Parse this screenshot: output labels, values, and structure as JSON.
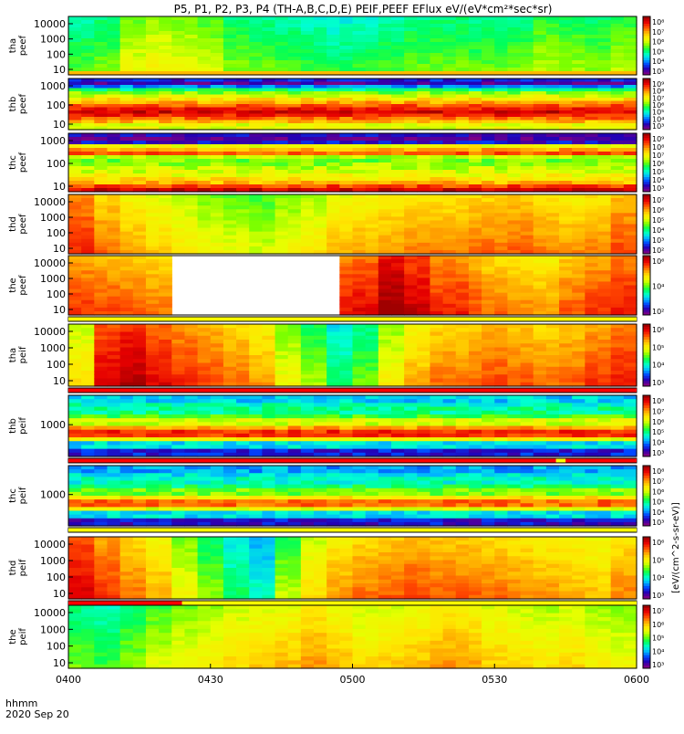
{
  "title": "P5, P1, P2, P3, P4 (TH-A,B,C,D,E) PEIF,PEEF EFlux eV/(eV*cm²*sec*sr)",
  "time_axis": {
    "row_label": "hhmm",
    "date": "2020 Sep 20",
    "ticks": [
      "0400",
      "0430",
      "0500",
      "0530",
      "0600"
    ]
  },
  "colorbar_unit": "[eV/(cm^2-s-sr-eV)]",
  "colormap": [
    "#7a0087",
    "#2500b4",
    "#0046ff",
    "#00b4ff",
    "#00ffd2",
    "#00ff5a",
    "#78ff00",
    "#e6ff00",
    "#ffe600",
    "#ffa000",
    "#ff4600",
    "#e60000",
    "#a00000"
  ],
  "chart_data": [
    {
      "type": "heatmap",
      "probe": "tha",
      "product": "peef",
      "ylabel": [
        "tha",
        "peef"
      ],
      "yticks": [
        "10000",
        "1000",
        "100",
        "10"
      ],
      "cbar_ticks": [
        "10⁸",
        "10⁷",
        "10⁶",
        "10⁵",
        "10⁴",
        "10³"
      ],
      "xlim": [
        "0400",
        "0600"
      ],
      "pattern": "uniform",
      "level_by_column": [
        0.42,
        0.45,
        0.55,
        0.58,
        0.56,
        0.52,
        0.46,
        0.44,
        0.42,
        0.4,
        0.38,
        0.4,
        0.42,
        0.44,
        0.45,
        0.43,
        0.44,
        0.45,
        0.5,
        0.48,
        0.46,
        0.5
      ],
      "bottom_band_level": 0.72
    },
    {
      "type": "heatmap",
      "probe": "thb",
      "product": "peef",
      "ylabel": [
        "thb",
        "peef"
      ],
      "yticks": [
        "1000",
        "100",
        "10"
      ],
      "cbar_ticks": [
        "10⁹",
        "10⁸",
        "10⁷",
        "10⁶",
        "10⁵",
        "10⁴",
        "10³"
      ],
      "xlim": [
        "0400",
        "0600"
      ],
      "pattern": "horizontal_bands",
      "band_levels_top_to_bottom": [
        0.12,
        0.05,
        0.22,
        0.4,
        0.5,
        0.58,
        0.66,
        0.74,
        0.82,
        0.9,
        0.94,
        0.88,
        0.8,
        0.72,
        0.6
      ]
    },
    {
      "type": "heatmap",
      "probe": "thc",
      "product": "peef",
      "ylabel": [
        "thc",
        "peef"
      ],
      "yticks": [
        "1000",
        "100",
        "10"
      ],
      "cbar_ticks": [
        "10⁹",
        "10⁸",
        "10⁷",
        "10⁶",
        "10⁵",
        "10⁴",
        "10³"
      ],
      "xlim": [
        "0400",
        "0600"
      ],
      "pattern": "horizontal_bands",
      "band_levels_top_to_bottom": [
        0.08,
        0.03,
        0.1,
        0.62,
        0.74,
        0.82,
        0.55,
        0.5,
        0.52,
        0.55,
        0.58,
        0.62,
        0.66,
        0.72,
        0.84,
        0.94
      ]
    },
    {
      "type": "heatmap",
      "probe": "thd",
      "product": "peef",
      "ylabel": [
        "thd",
        "peef"
      ],
      "yticks": [
        "10000",
        "1000",
        "100",
        "10"
      ],
      "cbar_ticks": [
        "10⁷",
        "10⁶",
        "10⁵",
        "10⁴",
        "10³",
        "10²"
      ],
      "xlim": [
        "0400",
        "0600"
      ],
      "pattern": "columns",
      "level_by_column": [
        0.82,
        0.74,
        0.68,
        0.64,
        0.6,
        0.56,
        0.54,
        0.52,
        0.56,
        0.6,
        0.66,
        0.68,
        0.7,
        0.72,
        0.72,
        0.74,
        0.74,
        0.76,
        0.72,
        0.7,
        0.72,
        0.78
      ]
    },
    {
      "type": "heatmap",
      "probe": "the",
      "product": "peef",
      "ylabel": [
        "the",
        "peef"
      ],
      "yticks": [
        "10000",
        "1000",
        "100",
        "10"
      ],
      "cbar_ticks": [
        "10⁶",
        "10⁴",
        "10²"
      ],
      "xlim": [
        "0400",
        "0600"
      ],
      "pattern": "columns_with_gap",
      "gap": [
        "0434",
        "0457"
      ],
      "level_by_column": [
        0.8,
        0.78,
        0.76,
        0.74,
        null,
        null,
        null,
        0.92,
        0.96,
        0.88,
        0.84,
        0.86,
        0.96,
        0.9,
        0.82,
        0.78,
        0.74,
        0.72,
        0.7,
        0.76,
        0.8,
        0.84
      ]
    },
    {
      "type": "heatmap",
      "probe": "tha",
      "product": "peif",
      "ylabel": [
        "tha",
        "peif"
      ],
      "yticks": [
        "10000",
        "1000",
        "100",
        "10"
      ],
      "cbar_ticks": [
        "10⁶",
        "10⁵",
        "10⁴",
        "10³"
      ],
      "xlim": [
        "0400",
        "0600"
      ],
      "pattern": "columns",
      "level_by_column": [
        0.62,
        0.88,
        0.92,
        0.86,
        0.82,
        0.78,
        0.74,
        0.7,
        0.56,
        0.48,
        0.36,
        0.44,
        0.58,
        0.68,
        0.74,
        0.76,
        0.78,
        0.76,
        0.74,
        0.76,
        0.8,
        0.84
      ]
    },
    {
      "type": "heatmap",
      "probe": "thb",
      "product": "peif",
      "ylabel": [
        "thb",
        "peif"
      ],
      "yticks": [
        "1000"
      ],
      "cbar_ticks": [
        "10⁸",
        "10⁷",
        "10⁶",
        "10⁵",
        "10⁴",
        "10³"
      ],
      "xlim": [
        "0400",
        "0600"
      ],
      "pattern": "horizontal_bands",
      "band_levels_top_to_bottom": [
        0.28,
        0.34,
        0.38,
        0.46,
        0.58,
        0.74,
        0.86,
        0.62,
        0.3,
        0.12
      ]
    },
    {
      "type": "heatmap",
      "probe": "thc",
      "product": "peif",
      "ylabel": [
        "thc",
        "peif"
      ],
      "yticks": [
        "1000"
      ],
      "cbar_ticks": [
        "10⁸",
        "10⁷",
        "10⁶",
        "10⁵",
        "10⁴",
        "10³"
      ],
      "xlim": [
        "0400",
        "0600"
      ],
      "pattern": "horizontal_bands",
      "band_levels_top_to_bottom": [
        0.24,
        0.3,
        0.34,
        0.4,
        0.5,
        0.66,
        0.8,
        0.6,
        0.3,
        0.1
      ]
    },
    {
      "type": "heatmap",
      "probe": "thd",
      "product": "peif",
      "ylabel": [
        "thd",
        "peif"
      ],
      "yticks": [
        "10000",
        "1000",
        "100",
        "10"
      ],
      "cbar_ticks": [
        "10⁶",
        "10⁵",
        "10⁴",
        "10³"
      ],
      "xlim": [
        "0400",
        "0600"
      ],
      "pattern": "columns",
      "level_by_column": [
        0.88,
        0.8,
        0.74,
        0.68,
        0.56,
        0.46,
        0.36,
        0.3,
        0.5,
        0.62,
        0.7,
        0.74,
        0.76,
        0.78,
        0.76,
        0.76,
        0.74,
        0.72,
        0.7,
        0.68,
        0.66,
        0.72
      ]
    },
    {
      "type": "heatmap",
      "probe": "the",
      "product": "peif",
      "ylabel": [
        "the",
        "peif"
      ],
      "yticks": [
        "10000",
        "1000",
        "100",
        "10"
      ],
      "cbar_ticks": [
        "10⁷",
        "10⁶",
        "10⁵",
        "10⁴",
        "10³"
      ],
      "xlim": [
        "0400",
        "0600"
      ],
      "pattern": "columns",
      "level_by_column": [
        0.44,
        0.4,
        0.46,
        0.52,
        0.56,
        0.58,
        0.62,
        0.64,
        0.66,
        0.7,
        0.66,
        0.62,
        0.64,
        0.66,
        0.7,
        0.68,
        0.64,
        0.62,
        0.6,
        0.62,
        0.58,
        0.56
      ]
    }
  ],
  "quality_flags": [
    {
      "after_panel": 4,
      "segments": [
        {
          "from": "0400",
          "to": "0600",
          "color": "#ffff00"
        }
      ]
    },
    {
      "after_panel": 5,
      "segments": [
        {
          "from": "0400",
          "to": "0600",
          "color": "#ff0000"
        }
      ]
    },
    {
      "after_panel": 6,
      "segments": [
        {
          "from": "0400",
          "to": "0543",
          "color": "#ff0000"
        },
        {
          "from": "0543",
          "to": "0545",
          "color": "#ffff00"
        },
        {
          "from": "0545",
          "to": "0600",
          "color": "#ff0000"
        }
      ]
    },
    {
      "after_panel": 7,
      "segments": [
        {
          "from": "0400",
          "to": "0600",
          "color": "#ffff00"
        }
      ]
    },
    {
      "after_panel": 8,
      "segments": [
        {
          "from": "0400",
          "to": "0424",
          "color": "#ff0000"
        },
        {
          "from": "0424",
          "to": "0600",
          "color": "#ffff00"
        }
      ]
    }
  ]
}
